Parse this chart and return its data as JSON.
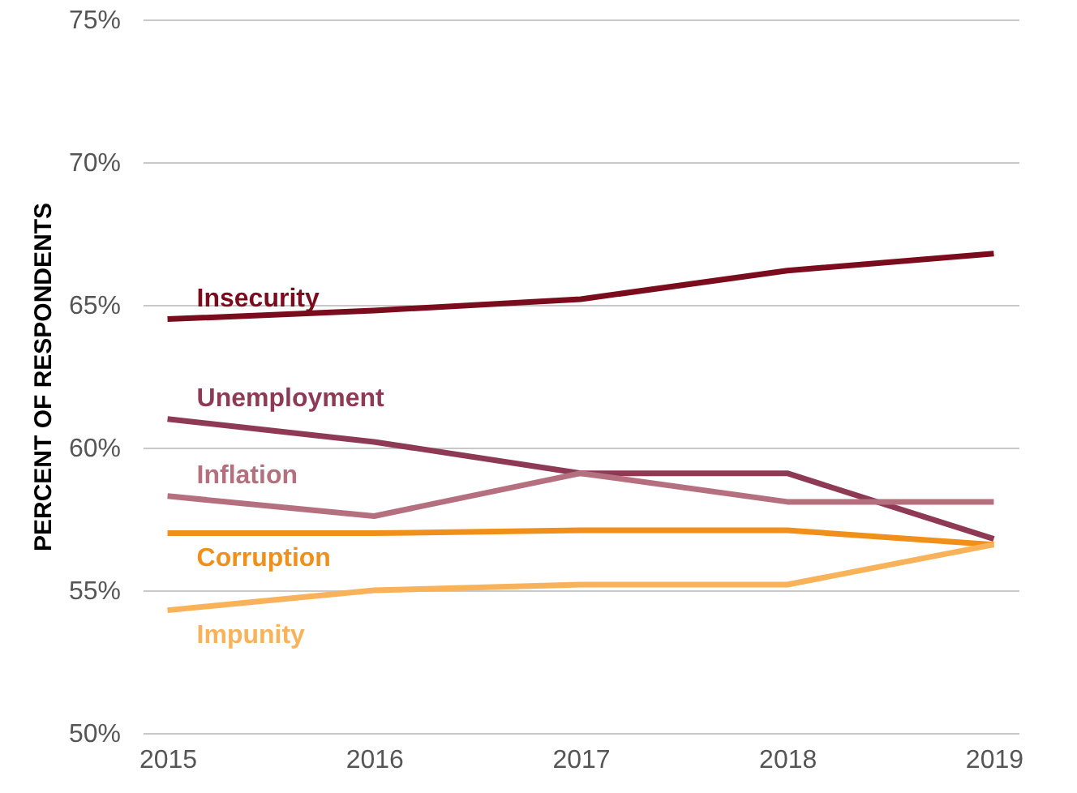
{
  "chart_data": {
    "type": "line",
    "ylabel": "PERCENT OF RESPONDENTS",
    "categories": [
      "2015",
      "2016",
      "2017",
      "2018",
      "2019"
    ],
    "ylim": [
      50,
      75
    ],
    "yticks": [
      {
        "value": 50,
        "label": "50%"
      },
      {
        "value": 55,
        "label": "55%"
      },
      {
        "value": 60,
        "label": "60%"
      },
      {
        "value": 65,
        "label": "65%"
      },
      {
        "value": 70,
        "label": "70%"
      },
      {
        "value": 75,
        "label": "75%"
      }
    ],
    "grid": "y",
    "line_style": "solid",
    "series": [
      {
        "name": "Insecurity",
        "color": "#7a0c1e",
        "values": [
          64.5,
          64.8,
          65.2,
          66.2,
          66.8
        ]
      },
      {
        "name": "Unemployment",
        "color": "#8e3a55",
        "values": [
          61.0,
          60.2,
          59.1,
          59.1,
          56.8
        ]
      },
      {
        "name": "Inflation",
        "color": "#b5707f",
        "values": [
          58.3,
          57.6,
          59.1,
          58.1,
          58.1
        ]
      },
      {
        "name": "Corruption",
        "color": "#f0901a",
        "values": [
          57.0,
          57.0,
          57.1,
          57.1,
          56.6
        ]
      },
      {
        "name": "Impunity",
        "color": "#f8b25a",
        "values": [
          54.3,
          55.0,
          55.2,
          55.2,
          56.6
        ]
      }
    ]
  }
}
